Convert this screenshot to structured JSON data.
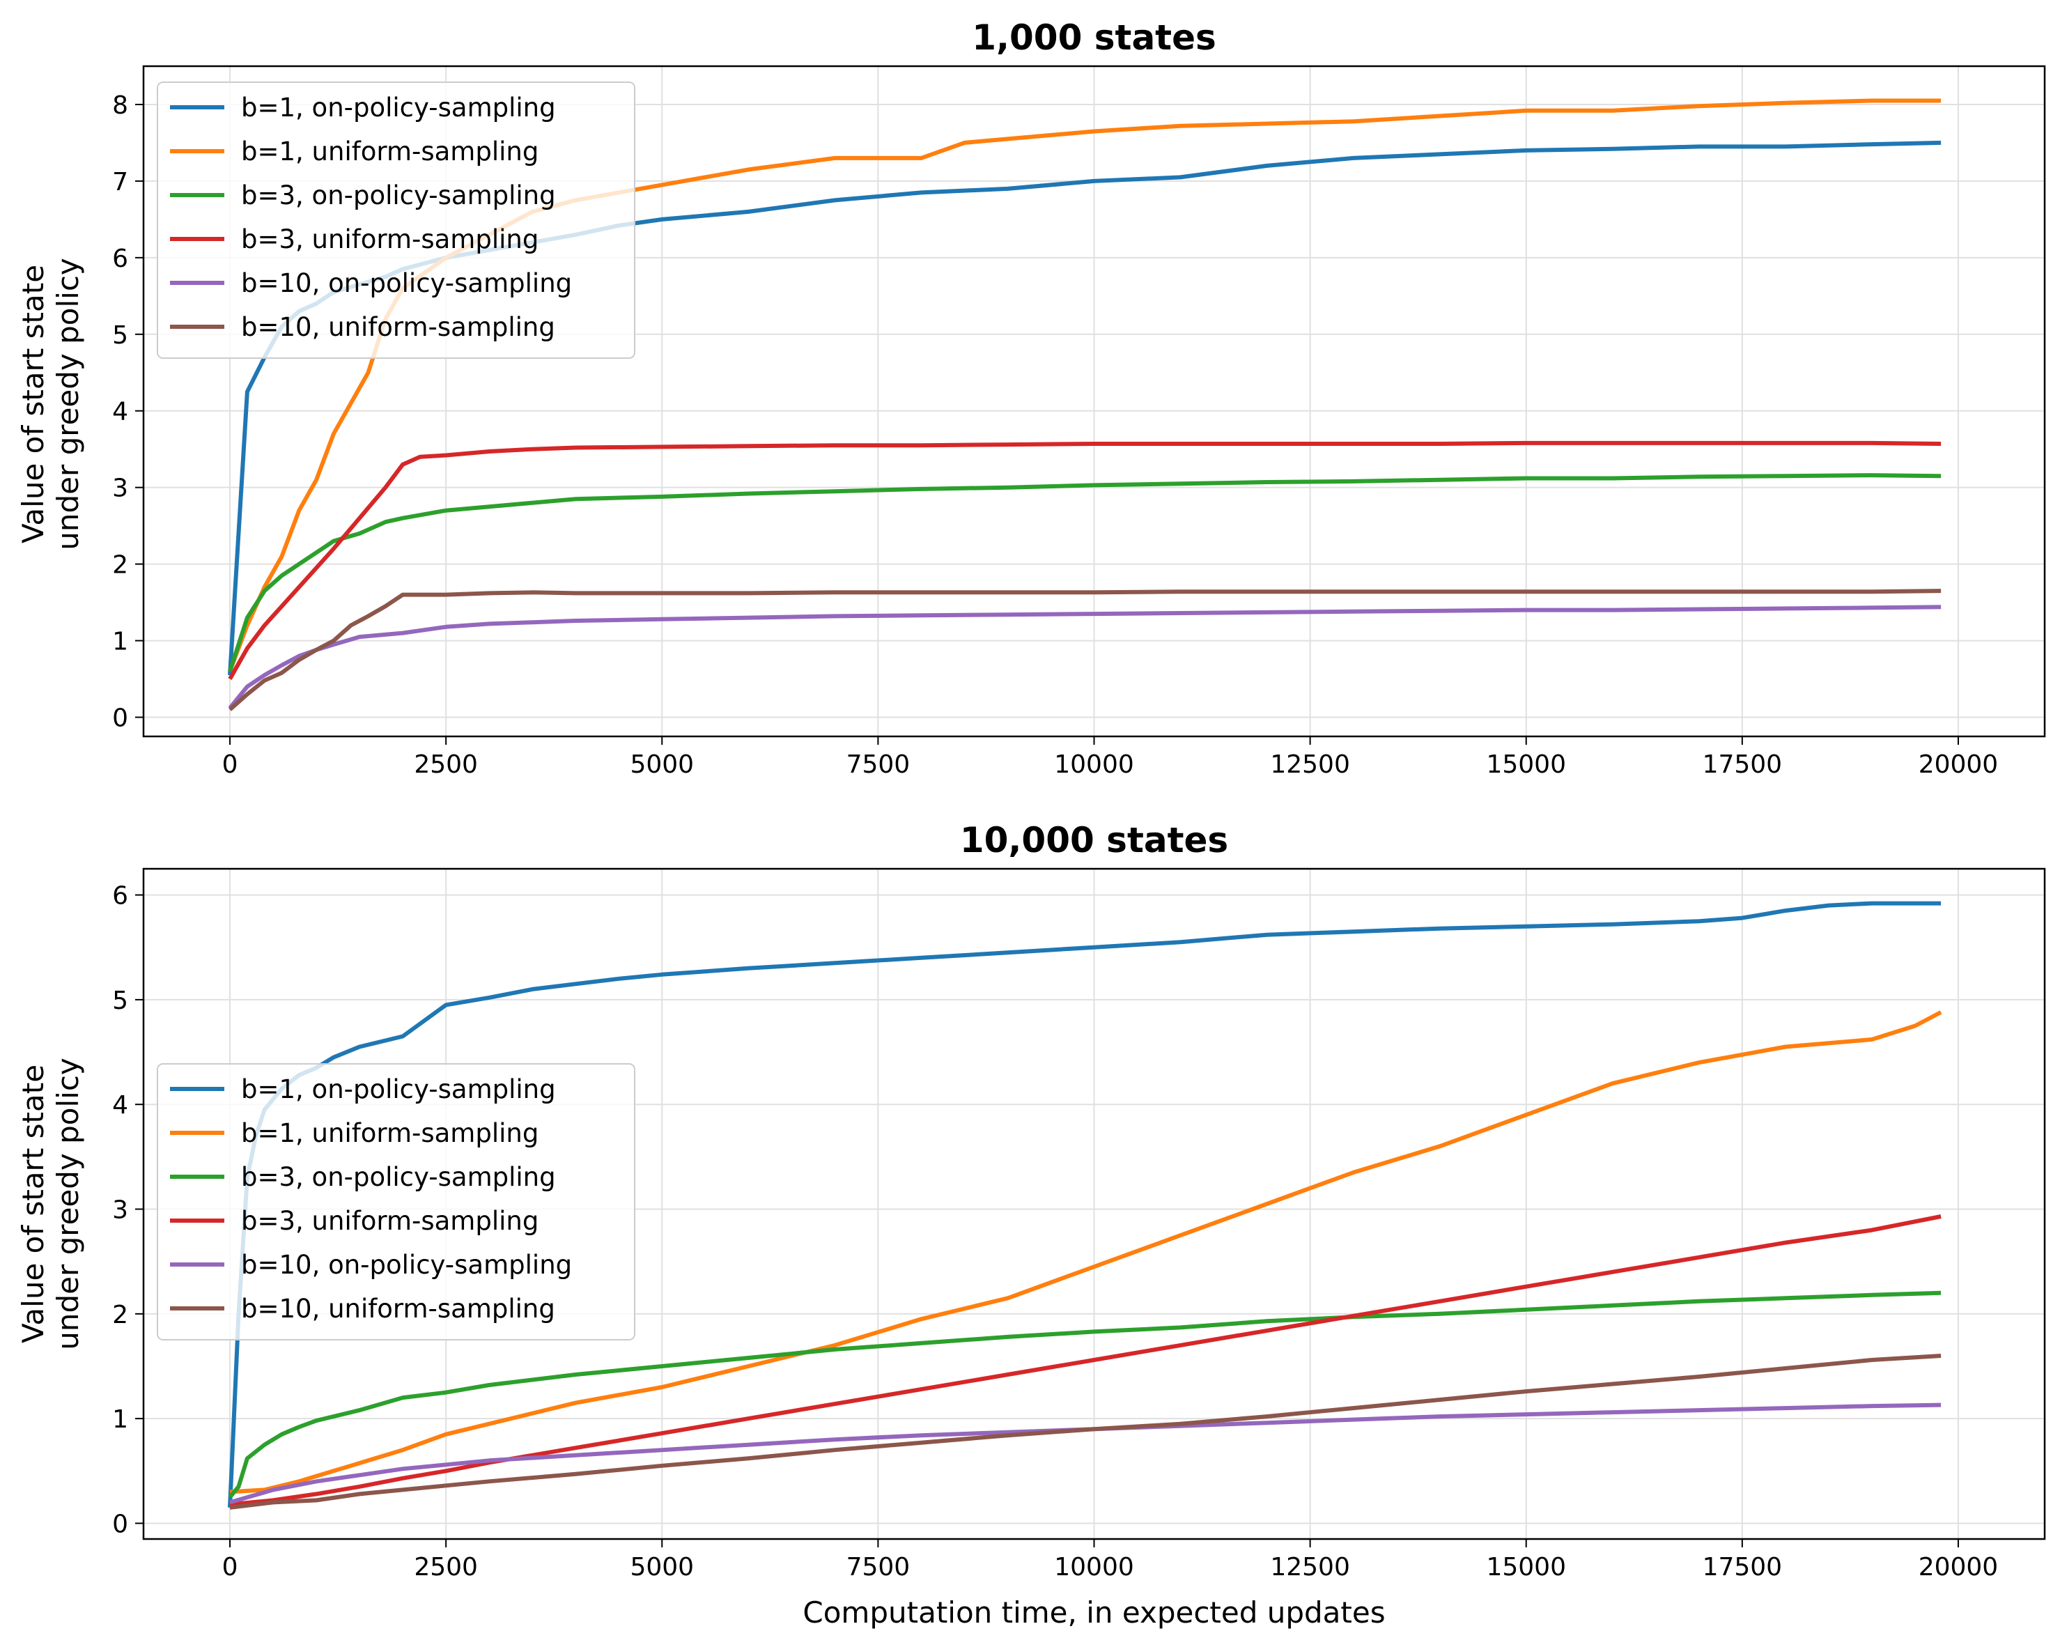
{
  "figure": {
    "xlabel": "Computation time, in expected updates",
    "ylabel_line1": "Value of start state",
    "ylabel_line2": "under greedy policy",
    "colors": {
      "b1_on": "#1f77b4",
      "b1_uni": "#ff7f0e",
      "b3_on": "#2ca02c",
      "b3_uni": "#d62728",
      "b10_on": "#9467bd",
      "b10_uni": "#8c564b",
      "grid": "#e0e0e0"
    }
  },
  "chart_data": [
    {
      "type": "line",
      "title": "1,000 states",
      "xlabel": "",
      "ylabel": "Value of start state under greedy policy",
      "xlim": [
        -1000,
        21000
      ],
      "ylim": [
        -0.25,
        8.5
      ],
      "xticks": [
        0,
        2500,
        5000,
        7500,
        10000,
        12500,
        15000,
        17500,
        20000
      ],
      "xtick_labels": [
        "0",
        "2500",
        "5000",
        "7500",
        "10000",
        "12500",
        "15000",
        "17500",
        "20000"
      ],
      "yticks": [
        0,
        1,
        2,
        3,
        4,
        5,
        6,
        7,
        8
      ],
      "ytick_labels": [
        "0",
        "1",
        "2",
        "3",
        "4",
        "5",
        "6",
        "7",
        "8"
      ],
      "grid": true,
      "legend_position": "top-left",
      "series": [
        {
          "name": "b=1, on-policy-sampling",
          "color_key": "b1_on",
          "x": [
            0,
            200,
            400,
            600,
            800,
            1000,
            1200,
            1500,
            1800,
            2000,
            2500,
            3000,
            3500,
            4000,
            4500,
            5000,
            6000,
            7000,
            8000,
            9000,
            10000,
            11000,
            12000,
            13000,
            14000,
            15000,
            16000,
            17000,
            18000,
            19000,
            19800
          ],
          "y": [
            0.55,
            4.25,
            4.7,
            5.1,
            5.3,
            5.4,
            5.55,
            5.65,
            5.75,
            5.85,
            6.0,
            6.1,
            6.2,
            6.3,
            6.42,
            6.5,
            6.6,
            6.75,
            6.85,
            6.9,
            7.0,
            7.05,
            7.2,
            7.3,
            7.35,
            7.4,
            7.42,
            7.45,
            7.45,
            7.48,
            7.5
          ]
        },
        {
          "name": "b=1, uniform-sampling",
          "color_key": "b1_uni",
          "x": [
            0,
            200,
            400,
            600,
            800,
            1000,
            1200,
            1400,
            1600,
            1800,
            2000,
            2500,
            3000,
            3500,
            4000,
            4500,
            5000,
            6000,
            7000,
            8000,
            8500,
            9000,
            10000,
            11000,
            12000,
            13000,
            14000,
            15000,
            16000,
            17000,
            18000,
            19000,
            19800
          ],
          "y": [
            0.6,
            1.2,
            1.7,
            2.1,
            2.7,
            3.1,
            3.7,
            4.1,
            4.5,
            5.2,
            5.6,
            6.0,
            6.3,
            6.6,
            6.75,
            6.85,
            6.95,
            7.15,
            7.3,
            7.3,
            7.5,
            7.55,
            7.65,
            7.72,
            7.75,
            7.78,
            7.85,
            7.92,
            7.92,
            7.98,
            8.02,
            8.05,
            8.05
          ]
        },
        {
          "name": "b=3, on-policy-sampling",
          "color_key": "b3_on",
          "x": [
            0,
            200,
            400,
            600,
            800,
            1000,
            1200,
            1500,
            1800,
            2000,
            2500,
            3000,
            3500,
            4000,
            5000,
            6000,
            7000,
            8000,
            9000,
            10000,
            11000,
            12000,
            13000,
            14000,
            15000,
            16000,
            17000,
            18000,
            19000,
            19800
          ],
          "y": [
            0.6,
            1.3,
            1.65,
            1.85,
            2.0,
            2.15,
            2.3,
            2.4,
            2.55,
            2.6,
            2.7,
            2.75,
            2.8,
            2.85,
            2.88,
            2.92,
            2.95,
            2.98,
            3.0,
            3.03,
            3.05,
            3.07,
            3.08,
            3.1,
            3.12,
            3.12,
            3.14,
            3.15,
            3.16,
            3.15
          ]
        },
        {
          "name": "b=3, uniform-sampling",
          "color_key": "b3_uni",
          "x": [
            0,
            200,
            400,
            600,
            800,
            1000,
            1200,
            1500,
            1800,
            2000,
            2200,
            2500,
            3000,
            3500,
            4000,
            5000,
            6000,
            7000,
            8000,
            9000,
            10000,
            11000,
            12000,
            13000,
            14000,
            15000,
            16000,
            17000,
            18000,
            19000,
            19800
          ],
          "y": [
            0.5,
            0.9,
            1.2,
            1.45,
            1.7,
            1.95,
            2.2,
            2.6,
            3.0,
            3.3,
            3.4,
            3.42,
            3.47,
            3.5,
            3.52,
            3.53,
            3.54,
            3.55,
            3.55,
            3.56,
            3.57,
            3.57,
            3.57,
            3.57,
            3.57,
            3.58,
            3.58,
            3.58,
            3.58,
            3.58,
            3.57
          ]
        },
        {
          "name": "b=10, on-policy-sampling",
          "color_key": "b10_on",
          "x": [
            0,
            200,
            400,
            600,
            800,
            1000,
            1200,
            1500,
            2000,
            2500,
            3000,
            3500,
            4000,
            5000,
            6000,
            7000,
            8000,
            9000,
            10000,
            11000,
            12000,
            13000,
            14000,
            15000,
            16000,
            17000,
            18000,
            19000,
            19800
          ],
          "y": [
            0.12,
            0.4,
            0.55,
            0.68,
            0.8,
            0.88,
            0.95,
            1.05,
            1.1,
            1.18,
            1.22,
            1.24,
            1.26,
            1.28,
            1.3,
            1.32,
            1.33,
            1.34,
            1.35,
            1.36,
            1.37,
            1.38,
            1.39,
            1.4,
            1.4,
            1.41,
            1.42,
            1.43,
            1.44
          ]
        },
        {
          "name": "b=10, uniform-sampling",
          "color_key": "b10_uni",
          "x": [
            0,
            200,
            400,
            600,
            800,
            1000,
            1200,
            1400,
            1600,
            1800,
            2000,
            2500,
            3000,
            3500,
            4000,
            5000,
            6000,
            7000,
            8000,
            9000,
            10000,
            11000,
            12000,
            13000,
            14000,
            15000,
            16000,
            17000,
            18000,
            19000,
            19800
          ],
          "y": [
            0.1,
            0.3,
            0.48,
            0.58,
            0.75,
            0.88,
            1.0,
            1.2,
            1.32,
            1.45,
            1.6,
            1.6,
            1.62,
            1.63,
            1.62,
            1.62,
            1.62,
            1.63,
            1.63,
            1.63,
            1.63,
            1.64,
            1.64,
            1.64,
            1.64,
            1.64,
            1.64,
            1.64,
            1.64,
            1.64,
            1.65
          ]
        }
      ]
    },
    {
      "type": "line",
      "title": "10,000 states",
      "xlabel": "Computation time, in expected updates",
      "ylabel": "Value of start state under greedy policy",
      "xlim": [
        -1000,
        21000
      ],
      "ylim": [
        -0.15,
        6.25
      ],
      "xticks": [
        0,
        2500,
        5000,
        7500,
        10000,
        12500,
        15000,
        17500,
        20000
      ],
      "xtick_labels": [
        "0",
        "2500",
        "5000",
        "7500",
        "10000",
        "12500",
        "15000",
        "17500",
        "20000"
      ],
      "yticks": [
        0,
        1,
        2,
        3,
        4,
        5,
        6
      ],
      "ytick_labels": [
        "0",
        "1",
        "2",
        "3",
        "4",
        "5",
        "6"
      ],
      "grid": true,
      "legend_position": "center-left",
      "series": [
        {
          "name": "b=1, on-policy-sampling",
          "color_key": "b1_on",
          "x": [
            0,
            100,
            200,
            300,
            400,
            600,
            800,
            1000,
            1200,
            1500,
            2000,
            2500,
            3000,
            3500,
            4000,
            4500,
            5000,
            6000,
            7000,
            8000,
            9000,
            10000,
            11000,
            12000,
            13000,
            14000,
            15000,
            16000,
            17000,
            17500,
            18000,
            18500,
            19000,
            19800
          ],
          "y": [
            0.15,
            2.0,
            3.3,
            3.7,
            3.95,
            4.15,
            4.28,
            4.35,
            4.45,
            4.55,
            4.65,
            4.95,
            5.02,
            5.1,
            5.15,
            5.2,
            5.24,
            5.3,
            5.35,
            5.4,
            5.45,
            5.5,
            5.55,
            5.62,
            5.65,
            5.68,
            5.7,
            5.72,
            5.75,
            5.78,
            5.85,
            5.9,
            5.92,
            5.92
          ]
        },
        {
          "name": "b=1, uniform-sampling",
          "color_key": "b1_uni",
          "x": [
            0,
            400,
            800,
            1200,
            1600,
            2000,
            2500,
            3000,
            4000,
            5000,
            6000,
            7000,
            8000,
            9000,
            10000,
            11000,
            12000,
            13000,
            14000,
            15000,
            16000,
            17000,
            18000,
            19000,
            19500,
            19800
          ],
          "y": [
            0.3,
            0.32,
            0.4,
            0.5,
            0.6,
            0.7,
            0.85,
            0.95,
            1.15,
            1.3,
            1.5,
            1.7,
            1.95,
            2.15,
            2.45,
            2.75,
            3.05,
            3.35,
            3.6,
            3.9,
            4.2,
            4.4,
            4.55,
            4.62,
            4.75,
            4.88
          ]
        },
        {
          "name": "b=3, on-policy-sampling",
          "color_key": "b3_on",
          "x": [
            0,
            100,
            200,
            400,
            600,
            800,
            1000,
            1500,
            2000,
            2500,
            3000,
            4000,
            5000,
            6000,
            7000,
            8000,
            9000,
            10000,
            11000,
            12000,
            13000,
            14000,
            15000,
            16000,
            17000,
            18000,
            19000,
            19800
          ],
          "y": [
            0.25,
            0.35,
            0.62,
            0.75,
            0.85,
            0.92,
            0.98,
            1.08,
            1.2,
            1.25,
            1.32,
            1.42,
            1.5,
            1.58,
            1.66,
            1.72,
            1.78,
            1.83,
            1.87,
            1.93,
            1.97,
            2.0,
            2.04,
            2.08,
            2.12,
            2.15,
            2.18,
            2.2
          ]
        },
        {
          "name": "b=3, uniform-sampling",
          "color_key": "b3_uni",
          "x": [
            0,
            500,
            1000,
            1500,
            2000,
            2500,
            3000,
            4000,
            5000,
            6000,
            7000,
            8000,
            9000,
            10000,
            11000,
            12000,
            13000,
            14000,
            15000,
            16000,
            17000,
            18000,
            19000,
            19800
          ],
          "y": [
            0.18,
            0.22,
            0.28,
            0.35,
            0.43,
            0.5,
            0.58,
            0.72,
            0.86,
            1.0,
            1.14,
            1.28,
            1.42,
            1.56,
            1.7,
            1.84,
            1.98,
            2.12,
            2.26,
            2.4,
            2.54,
            2.68,
            2.8,
            2.93
          ]
        },
        {
          "name": "b=10, on-policy-sampling",
          "color_key": "b10_on",
          "x": [
            0,
            500,
            1000,
            1500,
            2000,
            2500,
            3000,
            4000,
            5000,
            6000,
            7000,
            8000,
            9000,
            10000,
            11000,
            12000,
            13000,
            14000,
            15000,
            16000,
            17000,
            18000,
            19000,
            19800
          ],
          "y": [
            0.2,
            0.32,
            0.4,
            0.46,
            0.52,
            0.56,
            0.6,
            0.65,
            0.7,
            0.75,
            0.8,
            0.84,
            0.87,
            0.9,
            0.93,
            0.96,
            0.99,
            1.02,
            1.04,
            1.06,
            1.08,
            1.1,
            1.12,
            1.13
          ]
        },
        {
          "name": "b=10, uniform-sampling",
          "color_key": "b10_uni",
          "x": [
            0,
            500,
            1000,
            1500,
            2000,
            2500,
            3000,
            4000,
            5000,
            6000,
            7000,
            8000,
            9000,
            10000,
            11000,
            12000,
            13000,
            14000,
            15000,
            16000,
            17000,
            18000,
            19000,
            19800
          ],
          "y": [
            0.15,
            0.2,
            0.22,
            0.28,
            0.32,
            0.36,
            0.4,
            0.47,
            0.55,
            0.62,
            0.7,
            0.77,
            0.84,
            0.9,
            0.95,
            1.02,
            1.1,
            1.18,
            1.26,
            1.33,
            1.4,
            1.48,
            1.56,
            1.6
          ]
        }
      ]
    }
  ]
}
